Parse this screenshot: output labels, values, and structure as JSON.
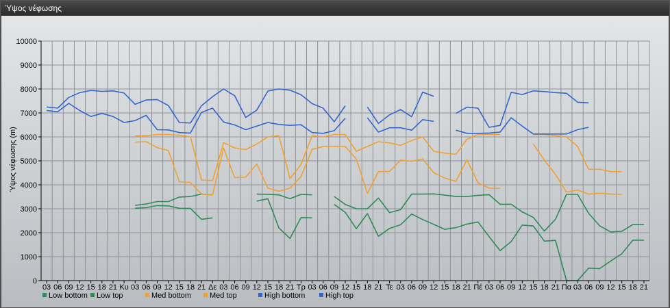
{
  "window": {
    "title": "Ύψος νέφωσης"
  },
  "chart_data": {
    "type": "line",
    "title": "",
    "ylabel": "Ύψος νέφωσης (m)",
    "xlabel": "",
    "ylim": [
      0,
      10000
    ],
    "yticks": [
      0,
      1000,
      2000,
      3000,
      4000,
      5000,
      6000,
      7000,
      8000,
      9000,
      10000
    ],
    "grid": true,
    "legend_position": "bottom-left",
    "categories": [
      "03",
      "06",
      "09",
      "12",
      "15",
      "18",
      "21",
      "Κυ",
      "03",
      "06",
      "09",
      "12",
      "15",
      "18",
      "21",
      "Δε",
      "03",
      "06",
      "09",
      "12",
      "15",
      "18",
      "21",
      "Τρ",
      "03",
      "06",
      "09",
      "12",
      "15",
      "18",
      "21",
      "Τε",
      "03",
      "06",
      "09",
      "12",
      "15",
      "18",
      "21",
      "Πέ",
      "03",
      "06",
      "09",
      "12",
      "15",
      "18",
      "21",
      "Πα",
      "03",
      "06",
      "09",
      "12",
      "15",
      "18",
      "21"
    ],
    "series": [
      {
        "name": "Low bottom",
        "color": "#2e8b57",
        "values": [
          null,
          null,
          null,
          null,
          null,
          null,
          null,
          null,
          3020,
          3050,
          3130,
          3120,
          3020,
          3010,
          2560,
          2620,
          null,
          null,
          null,
          3320,
          3420,
          2200,
          1760,
          2630,
          2620,
          null,
          3180,
          2850,
          2170,
          2800,
          1850,
          2180,
          2330,
          2780,
          2550,
          2350,
          2140,
          2210,
          2360,
          2450,
          1840,
          1250,
          1630,
          2320,
          2280,
          1650,
          1680,
          0,
          0,
          520,
          500,
          820,
          1120,
          1690,
          1690
        ]
      },
      {
        "name": "Low top",
        "color": "#2e8b57",
        "values": [
          null,
          null,
          null,
          null,
          null,
          null,
          null,
          null,
          3140,
          3200,
          3300,
          3300,
          3490,
          3510,
          3610,
          3580,
          null,
          null,
          null,
          3610,
          3600,
          3580,
          3420,
          3600,
          3580,
          null,
          3510,
          3180,
          3000,
          3000,
          3450,
          2840,
          2960,
          3610,
          3610,
          3620,
          3570,
          3510,
          3510,
          3560,
          3590,
          3190,
          3190,
          2870,
          2640,
          2070,
          2560,
          3600,
          3600,
          2810,
          2290,
          2030,
          2060,
          2340,
          2340
        ]
      },
      {
        "name": "Med bottom",
        "color": "#f0a030",
        "values": [
          null,
          null,
          null,
          null,
          null,
          null,
          null,
          null,
          5780,
          5800,
          5550,
          5430,
          4130,
          4100,
          3610,
          3580,
          5530,
          4300,
          4320,
          4870,
          3860,
          3730,
          3860,
          4340,
          5480,
          5600,
          5600,
          5600,
          5080,
          3640,
          4550,
          4560,
          5030,
          4980,
          5080,
          4500,
          4280,
          4150,
          5040,
          4080,
          3860,
          3850,
          null,
          null,
          5700,
          5030,
          4430,
          3700,
          3780,
          3610,
          3650,
          3610,
          3600,
          null,
          null
        ]
      },
      {
        "name": "Med top",
        "color": "#f0a030",
        "values": [
          null,
          null,
          null,
          null,
          null,
          null,
          null,
          null,
          6050,
          6050,
          6100,
          6100,
          6070,
          6000,
          4200,
          4180,
          5760,
          5540,
          5470,
          5700,
          6000,
          6050,
          4260,
          4850,
          6050,
          6000,
          6100,
          6100,
          5400,
          5600,
          5800,
          5750,
          5650,
          5850,
          6000,
          5400,
          5320,
          5270,
          5900,
          6100,
          6100,
          6100,
          null,
          null,
          6100,
          6100,
          6050,
          6000,
          5600,
          4650,
          4650,
          4550,
          4550,
          null,
          null
        ]
      },
      {
        "name": "High bottom",
        "color": "#3366cc",
        "values": [
          7100,
          7050,
          7400,
          7100,
          6850,
          6980,
          6850,
          6600,
          6680,
          6900,
          6300,
          6290,
          6180,
          6160,
          7020,
          7200,
          6620,
          6500,
          6300,
          6450,
          6600,
          6520,
          6480,
          6510,
          6180,
          6150,
          6260,
          6780,
          null,
          6800,
          6200,
          6380,
          6380,
          6280,
          6720,
          6650,
          null,
          6280,
          6150,
          6150,
          6160,
          6200,
          6800,
          6450,
          6120,
          6120,
          6120,
          6120,
          6300,
          6400,
          null,
          null,
          null,
          null,
          null
        ]
      },
      {
        "name": "High top",
        "color": "#3366cc",
        "values": [
          7250,
          7200,
          7650,
          7850,
          7940,
          7900,
          7920,
          7830,
          7360,
          7540,
          7560,
          7310,
          6600,
          6580,
          7300,
          7680,
          8000,
          7720,
          6810,
          7120,
          7910,
          8000,
          7950,
          7760,
          7390,
          7200,
          6630,
          7300,
          null,
          7250,
          6560,
          6920,
          7140,
          6840,
          7870,
          7690,
          null,
          6980,
          7240,
          7200,
          6400,
          6480,
          7860,
          7770,
          7920,
          7890,
          7850,
          7820,
          7450,
          7420,
          null,
          null,
          null,
          null,
          null
        ]
      }
    ]
  }
}
